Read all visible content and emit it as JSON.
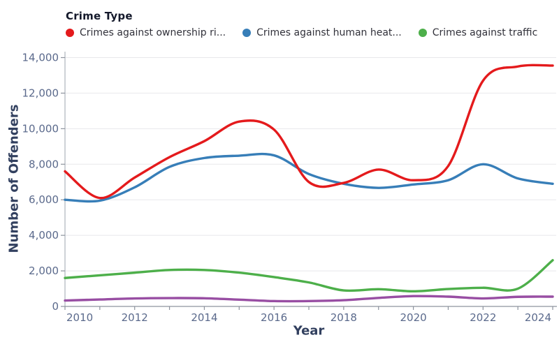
{
  "legend": {
    "title": "Crime Type",
    "items": [
      {
        "label": "Crimes against ownership ri...",
        "color": "#e41a1c"
      },
      {
        "label": "Crimes against human heat...",
        "color": "#377eb8"
      },
      {
        "label": "Crimes against traffic",
        "color": "#4daf4a"
      }
    ]
  },
  "axes": {
    "xlabel": "Year",
    "ylabel": "Number of Offenders"
  },
  "chart_data": {
    "type": "line",
    "legend_title": "Crime Type",
    "xlabel": "Year",
    "ylabel": "Number of Offenders",
    "x": [
      2010,
      2011,
      2012,
      2013,
      2014,
      2015,
      2016,
      2017,
      2018,
      2019,
      2020,
      2021,
      2022,
      2023,
      2024
    ],
    "xlim": [
      2010,
      2024.1
    ],
    "ylim": [
      0,
      14000
    ],
    "grid": "horizontal",
    "legend_position": "top-left",
    "xtick_label_values": [
      2010,
      2012,
      2014,
      2016,
      2018,
      2020,
      2022,
      2024
    ],
    "xtick_labels": [
      "2010",
      "2012",
      "2014",
      "2016",
      "2018",
      "2020",
      "2022",
      "2024"
    ],
    "xtick_minor_values": [
      2010,
      2011,
      2012,
      2013,
      2014,
      2015,
      2016,
      2017,
      2018,
      2019,
      2020,
      2021,
      2022,
      2023,
      2024
    ],
    "ytick_values": [
      0,
      2000,
      4000,
      6000,
      8000,
      10000,
      12000,
      14000
    ],
    "ytick_labels": [
      "0",
      "2,000",
      "4,000",
      "6,000",
      "8,000",
      "10,000",
      "12,000",
      "14,000"
    ],
    "series": [
      {
        "name": "Crimes against ownership ri...",
        "color": "#e41a1c",
        "values": [
          7600,
          6100,
          7250,
          8400,
          9300,
          10400,
          9950,
          7000,
          6950,
          7700,
          7100,
          7900,
          12700,
          13500,
          13550
        ]
      },
      {
        "name": "Crimes against human heat...",
        "color": "#377eb8",
        "values": [
          6000,
          5950,
          6700,
          7850,
          8350,
          8480,
          8500,
          7450,
          6900,
          6670,
          6860,
          7100,
          8000,
          7200,
          6900
        ]
      },
      {
        "name": "Crimes against traffic",
        "color": "#4daf4a",
        "values": [
          1600,
          1750,
          1900,
          2050,
          2050,
          1900,
          1650,
          1350,
          900,
          970,
          850,
          980,
          1050,
          1000,
          2600
        ]
      },
      {
        "name": "",
        "color": "#984ea3",
        "values": [
          330,
          390,
          450,
          470,
          460,
          380,
          300,
          300,
          350,
          480,
          580,
          550,
          450,
          540,
          550
        ]
      }
    ]
  }
}
